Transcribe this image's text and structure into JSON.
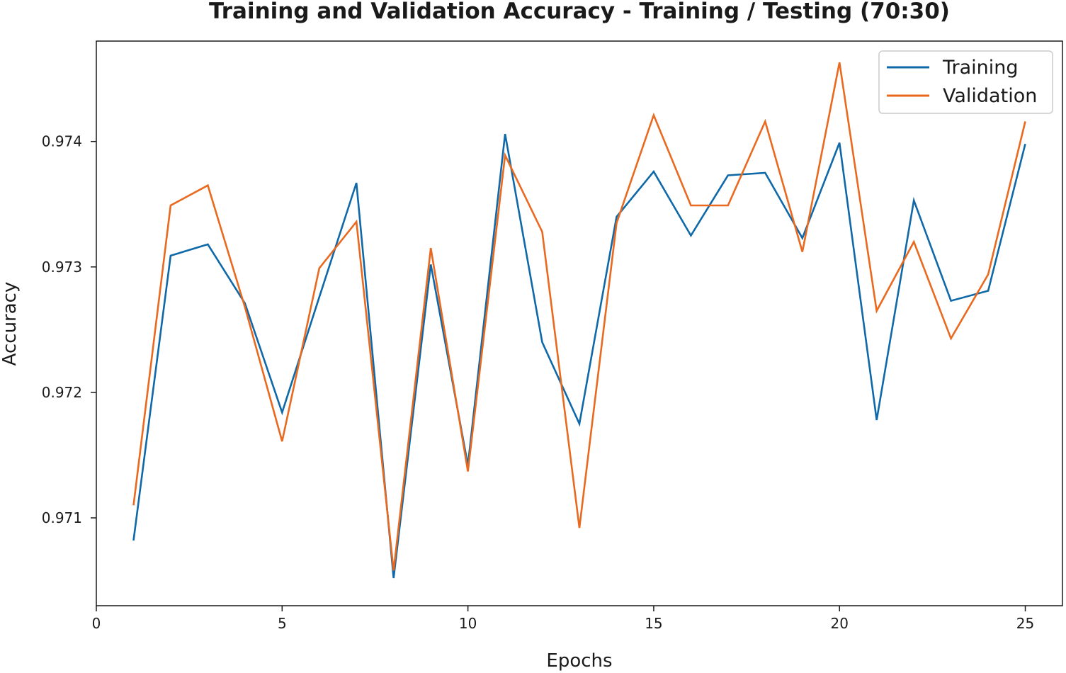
{
  "chart_data": {
    "type": "line",
    "title": "Training and Validation Accuracy - Training / Testing (70:30)",
    "xlabel": "Epochs",
    "ylabel": "Accuracy",
    "xlim": [
      0,
      26
    ],
    "ylim": [
      0.9703,
      0.9748
    ],
    "xticks": [
      0,
      5,
      10,
      15,
      20,
      25
    ],
    "yticks": [
      0.971,
      0.972,
      0.973,
      0.974
    ],
    "ytick_labels": [
      "0.971",
      "0.972",
      "0.973",
      "0.974"
    ],
    "grid": false,
    "legend_position": "top-right",
    "x": [
      1,
      2,
      3,
      4,
      5,
      6,
      7,
      8,
      9,
      10,
      11,
      12,
      13,
      14,
      15,
      16,
      17,
      18,
      19,
      20,
      21,
      22,
      23,
      24,
      25
    ],
    "series": [
      {
        "name": "Training",
        "color": "#0f69a8",
        "values": [
          0.97082,
          0.97309,
          0.97318,
          0.97271,
          0.97184,
          0.97276,
          0.97367,
          0.97052,
          0.97302,
          0.97142,
          0.97406,
          0.9724,
          0.97175,
          0.9734,
          0.97376,
          0.97325,
          0.97373,
          0.97375,
          0.97323,
          0.97399,
          0.97178,
          0.97353,
          0.97273,
          0.97281,
          0.97398
        ]
      },
      {
        "name": "Validation",
        "color": "#e9691f",
        "values": [
          0.9711,
          0.97349,
          0.97365,
          0.97268,
          0.97161,
          0.97299,
          0.97336,
          0.97058,
          0.97315,
          0.97137,
          0.97389,
          0.97328,
          0.97092,
          0.97335,
          0.97421,
          0.97349,
          0.97349,
          0.97416,
          0.97312,
          0.97463,
          0.97265,
          0.9732,
          0.97243,
          0.97294,
          0.97416
        ]
      }
    ]
  }
}
